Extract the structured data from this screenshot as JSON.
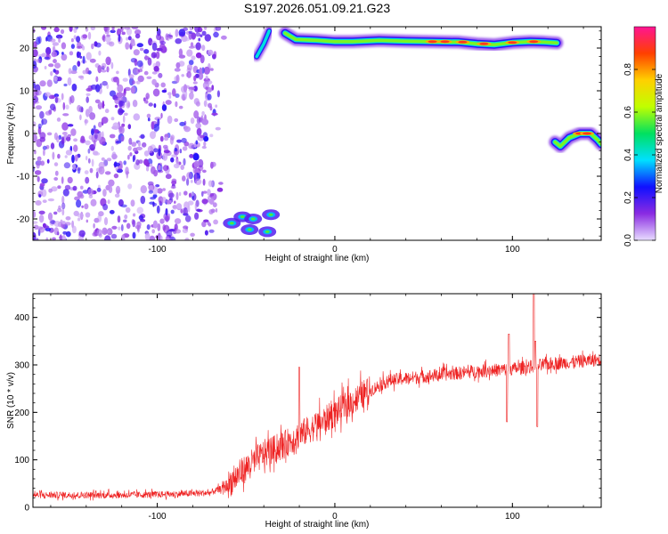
{
  "title": "S197.2026.051.09.21.G23",
  "charts": [
    {
      "type": "heatmap",
      "xlabel": "Height of straight line (km)",
      "ylabel": "Frequency (Hz)",
      "xlim": [
        -170,
        150
      ],
      "ylim": [
        -25,
        25
      ],
      "xticks": [
        -100,
        0,
        100
      ],
      "yticks": [
        20,
        10,
        0,
        -10,
        -20
      ],
      "xtick_labels": [
        "-100",
        "0",
        "100"
      ],
      "ytick_labels": [
        "20",
        "10",
        "0",
        "-10",
        "-20"
      ],
      "colorbar": {
        "label": "Normalized spectral amplitude",
        "range": [
          0,
          1
        ],
        "ticks": [
          0.0,
          0.2,
          0.4,
          0.6,
          0.8
        ],
        "tick_labels": [
          "0.0",
          "0.2",
          "0.4",
          "0.6",
          "0.8"
        ],
        "colors": [
          "#e8ddff",
          "#8a2be2",
          "#1010ff",
          "#00e0ff",
          "#00e060",
          "#c0ff00",
          "#ffd000",
          "#ff4000",
          "#ff1493"
        ]
      },
      "regions": [
        {
          "name": "noise-cloud",
          "x": [
            -170,
            -62
          ],
          "y": [
            -25,
            25
          ],
          "level": 0.15
        },
        {
          "name": "low-cluster",
          "x": [
            -62,
            -30
          ],
          "y": [
            -25,
            -17
          ],
          "level": 0.3
        },
        {
          "name": "rising-arc",
          "points": [
            [
              -44,
              18
            ],
            [
              -40,
              21
            ],
            [
              -37,
              24
            ]
          ],
          "level": 0.3
        },
        {
          "name": "upper-band",
          "points": [
            [
              -28,
              23.5
            ],
            [
              -22,
              22
            ],
            [
              -10,
              21.8
            ],
            [
              0,
              21.5
            ],
            [
              10,
              21.5
            ],
            [
              25,
              21.8
            ],
            [
              40,
              21.6
            ],
            [
              55,
              21.5
            ],
            [
              70,
              21.4
            ],
            [
              80,
              21
            ],
            [
              90,
              20.8
            ],
            [
              100,
              21.3
            ],
            [
              110,
              21.5
            ],
            [
              118,
              21.4
            ],
            [
              125,
              21.2
            ]
          ],
          "level": 0.8
        },
        {
          "name": "right-arc",
          "points": [
            [
              124,
              -2
            ],
            [
              127,
              -3
            ],
            [
              132,
              -1
            ],
            [
              138,
              0
            ],
            [
              144,
              0
            ],
            [
              148,
              -1.5
            ],
            [
              150,
              -2.5
            ]
          ],
          "level": 0.85
        }
      ]
    },
    {
      "type": "line",
      "xlabel": "Height of straight line (km)",
      "ylabel": "SNR (10 * v/v)",
      "xlim": [
        -170,
        150
      ],
      "ylim": [
        0,
        450
      ],
      "xticks": [
        -100,
        0,
        100
      ],
      "yticks": [
        0,
        100,
        200,
        300,
        400
      ],
      "xtick_labels": [
        "-100",
        "0",
        "100"
      ],
      "ytick_labels": [
        "0",
        "100",
        "200",
        "300",
        "400"
      ],
      "line_color": "#ee2222",
      "trend": {
        "x": [
          -170,
          -150,
          -120,
          -90,
          -70,
          -60,
          -50,
          -40,
          -30,
          -20,
          -10,
          0,
          10,
          20,
          30,
          40,
          60,
          80,
          100,
          120,
          150
        ],
        "y": [
          25,
          25,
          25,
          27,
          30,
          45,
          80,
          110,
          125,
          150,
          170,
          195,
          220,
          245,
          265,
          270,
          278,
          285,
          290,
          300,
          310
        ]
      },
      "spikes": [
        {
          "x": -20,
          "y": 295
        },
        {
          "x": 97,
          "y": 180
        },
        {
          "x": 98,
          "y": 365
        },
        {
          "x": 112,
          "y": 450
        },
        {
          "x": 114,
          "y": 170
        },
        {
          "x": 113,
          "y": 350
        }
      ]
    }
  ]
}
